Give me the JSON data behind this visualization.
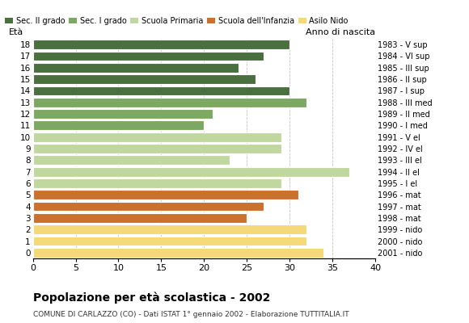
{
  "ages": [
    18,
    17,
    16,
    15,
    14,
    13,
    12,
    11,
    10,
    9,
    8,
    7,
    6,
    5,
    4,
    3,
    2,
    1,
    0
  ],
  "values": [
    30,
    27,
    24,
    26,
    30,
    32,
    21,
    20,
    29,
    29,
    23,
    37,
    29,
    31,
    27,
    25,
    32,
    32,
    34
  ],
  "right_labels": [
    "1983 - V sup",
    "1984 - VI sup",
    "1985 - III sup",
    "1986 - II sup",
    "1987 - I sup",
    "1988 - III med",
    "1989 - II med",
    "1990 - I med",
    "1991 - V el",
    "1992 - IV el",
    "1993 - III el",
    "1994 - II el",
    "1995 - I el",
    "1996 - mat",
    "1997 - mat",
    "1998 - mat",
    "1999 - nido",
    "2000 - nido",
    "2001 - nido"
  ],
  "bar_colors": [
    "#4a7040",
    "#4a7040",
    "#4a7040",
    "#4a7040",
    "#4a7040",
    "#7da864",
    "#7da864",
    "#7da864",
    "#c0d8a0",
    "#c0d8a0",
    "#c0d8a0",
    "#c0d8a0",
    "#c0d8a0",
    "#cc7030",
    "#cc7030",
    "#cc7030",
    "#f5d878",
    "#f5d878",
    "#f5d878"
  ],
  "legend_labels": [
    "Sec. II grado",
    "Sec. I grado",
    "Scuola Primaria",
    "Scuola dell'Infanzia",
    "Asilo Nido"
  ],
  "legend_colors": [
    "#4a7040",
    "#7da864",
    "#c0d8a0",
    "#cc7030",
    "#f5d878"
  ],
  "title": "Popolazione per età scolastica - 2002",
  "subtitle": "COMUNE DI CARLAZZO (CO) - Dati ISTAT 1° gennaio 2002 - Elaborazione TUTTITALIA.IT",
  "label_left": "Età",
  "label_right": "Anno di nascita",
  "xlim": [
    0,
    40
  ],
  "xticks": [
    0,
    5,
    10,
    15,
    20,
    25,
    30,
    35,
    40
  ],
  "grid_values": [
    5,
    10,
    15,
    20,
    25,
    30,
    35
  ],
  "background_color": "#ffffff"
}
